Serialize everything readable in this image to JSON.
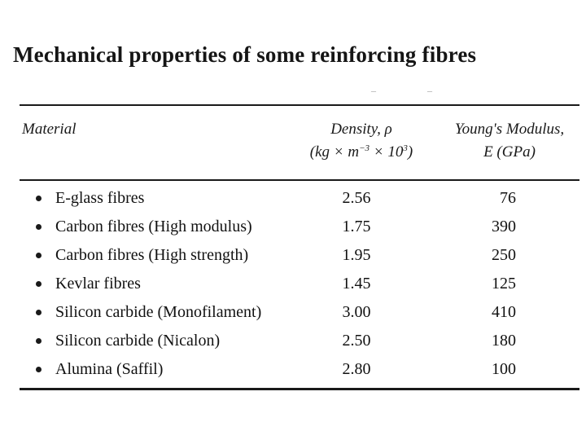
{
  "title": "Mechanical properties of some reinforcing fibres",
  "header_marks": "– –",
  "headers": {
    "material": "Material",
    "density_line1": "Density, ρ",
    "density_line2_a": "(kg × m",
    "density_exp1": "−3",
    "density_line2_b": " × 10",
    "density_exp2": "3",
    "density_line2_c": ")",
    "modulus_line1": "Young's Modulus,",
    "modulus_line2": "E (GPa)"
  },
  "rows": [
    {
      "material": "E-glass fibres",
      "density": "2.56",
      "modulus": "76"
    },
    {
      "material": "Carbon fibres (High modulus)",
      "density": "1.75",
      "modulus": "390"
    },
    {
      "material": "Carbon fibres (High strength)",
      "density": "1.95",
      "modulus": "250"
    },
    {
      "material": "Kevlar fibres",
      "density": "1.45",
      "modulus": "125"
    },
    {
      "material": "Silicon carbide (Monofilament)",
      "density": "3.00",
      "modulus": "410"
    },
    {
      "material": "Silicon carbide (Nicalon)",
      "density": "2.50",
      "modulus": "180"
    },
    {
      "material": "Alumina (Saffil)",
      "density": "2.80",
      "modulus": "100"
    }
  ]
}
